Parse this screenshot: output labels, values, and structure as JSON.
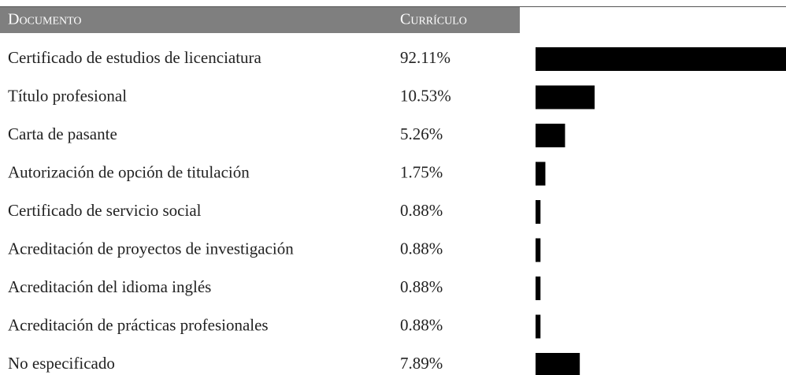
{
  "chart_data": {
    "type": "bar",
    "column_headers": [
      "Documento",
      "Currículo"
    ],
    "categories": [
      "Certificado de estudios de licenciatura",
      "Título profesional",
      "Carta de pasante",
      "Autorización de opción de titulación",
      "Certificado de servicio social",
      "Acreditación de proyectos de investigación",
      "Acreditación del idioma inglés",
      "Acreditación de prácticas profesionales",
      "No especificado"
    ],
    "values": [
      92.11,
      10.53,
      5.26,
      1.75,
      0.88,
      0.88,
      0.88,
      0.88,
      7.89
    ],
    "value_labels": [
      "92.11%",
      "10.53%",
      "5.26%",
      "1.75%",
      "0.88%",
      "0.88%",
      "0.88%",
      "0.88%",
      "7.89%"
    ],
    "color": "#000000"
  }
}
